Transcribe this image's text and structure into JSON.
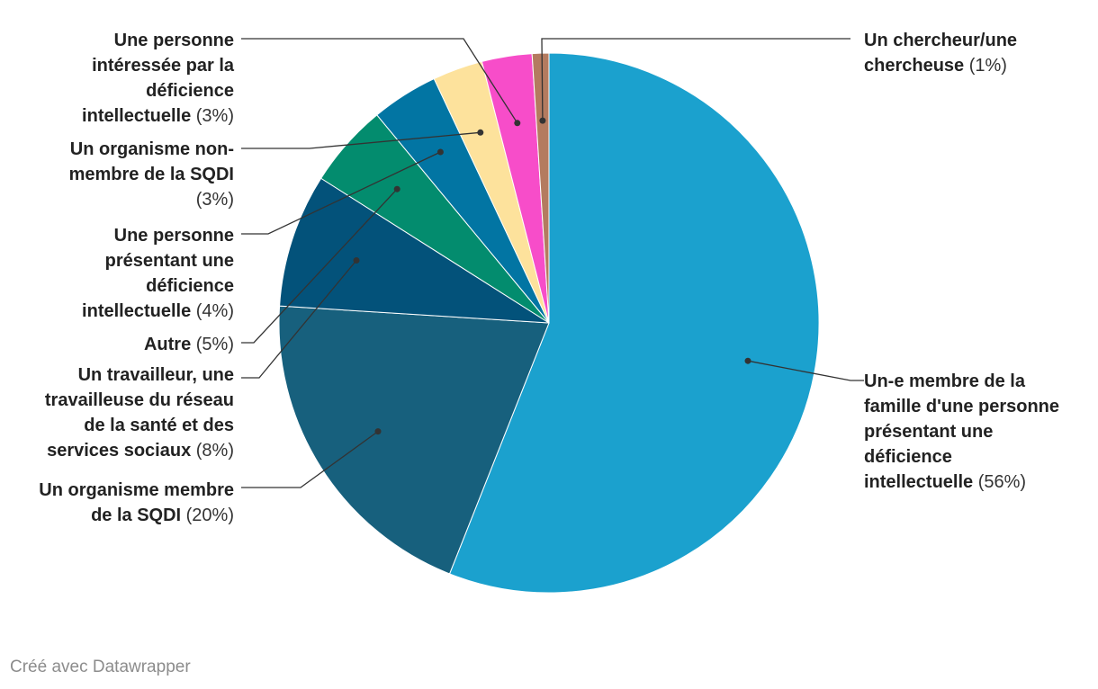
{
  "chart_data": {
    "type": "pie",
    "slices": [
      {
        "label": "Un-e membre de la famille d'une personne présentant une déficience intellectuelle",
        "percent_label": "(56%)",
        "value": 56,
        "color": "#1ba1ce"
      },
      {
        "label": "Un organisme membre de la SQDI",
        "percent_label": "(20%)",
        "value": 20,
        "color": "#17607d"
      },
      {
        "label": "Un travailleur, une travailleuse du réseau de la santé et des services sociaux",
        "percent_label": "(8%)",
        "value": 8,
        "color": "#03527a"
      },
      {
        "label": "Autre",
        "percent_label": "(5%)",
        "value": 5,
        "color": "#038c6e"
      },
      {
        "label": "Une personne présentant une déficience intellectuelle",
        "percent_label": "(4%)",
        "value": 4,
        "color": "#0275a3"
      },
      {
        "label": "Un organisme non-membre de la SQDI",
        "percent_label": "(3%)",
        "value": 3,
        "color": "#fde29c"
      },
      {
        "label": "Une personne intéressée par la déficience intellectuelle",
        "percent_label": "(3%)",
        "value": 3,
        "color": "#f74dc9"
      },
      {
        "label": "Un chercheur/une chercheuse",
        "percent_label": "(1%)",
        "value": 1,
        "color": "#b47b5f"
      }
    ]
  },
  "footer": {
    "credit": "Créé avec Datawrapper"
  }
}
